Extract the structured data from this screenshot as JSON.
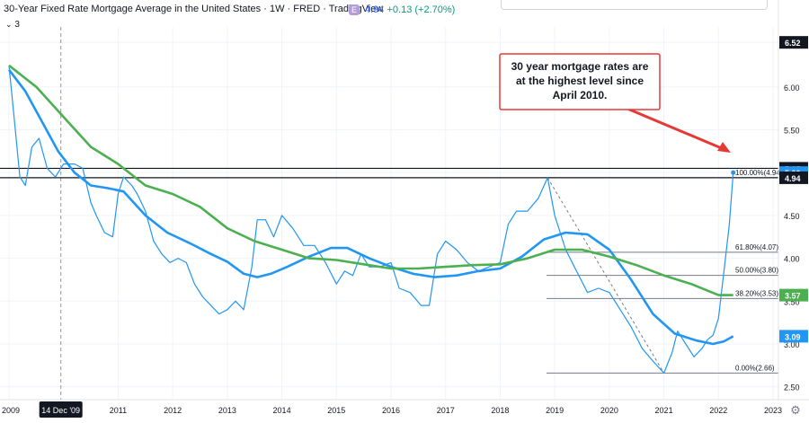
{
  "header": {
    "title": "30-Year Fixed Rate Mortgage Average in the United States · 1W · FRED · TradingView",
    "badge": "E",
    "last": "4.94",
    "change": "+0.13 (+2.70%)",
    "layers": "3"
  },
  "annotation": {
    "line1": "30 year mortgage rates are",
    "line2": "at the highest level since",
    "line3": "April 2010."
  },
  "chart_data": {
    "type": "line",
    "x_axis": {
      "labels": [
        "2009",
        "14 Dec '09",
        "2011",
        "2012",
        "2013",
        "2014",
        "2015",
        "2016",
        "2017",
        "2018",
        "2019",
        "2020",
        "2021",
        "2022",
        "2023"
      ],
      "highlight": "14 Dec '09"
    },
    "y_axis": {
      "ticks": [
        "2.50",
        "3.00",
        "3.50",
        "4.00",
        "4.50",
        "5.00",
        "5.50",
        "6.00",
        "6.52"
      ],
      "ylim": [
        2.35,
        6.7
      ],
      "side": "right"
    },
    "price_tags": [
      {
        "label": "6.52",
        "value": 6.52,
        "color": "#131722"
      },
      {
        "label": "5.05",
        "value": 5.05,
        "color": "#131722"
      },
      {
        "label": "5.00",
        "value": 5.0,
        "color": "#2196f3"
      },
      {
        "label": "4.94",
        "value": 4.94,
        "color": "#131722"
      },
      {
        "label": "3.57",
        "value": 3.57,
        "color": "#4caf50"
      },
      {
        "label": "3.09",
        "value": 3.09,
        "color": "#2196f3"
      }
    ],
    "horizontal_lines": [
      5.05,
      4.94
    ],
    "fibonacci": [
      {
        "label": "100.00%(4.94)",
        "value": 4.94
      },
      {
        "label": "61.80%(4.07)",
        "value": 4.07
      },
      {
        "label": "50.00%(3.80)",
        "value": 3.8
      },
      {
        "label": "38.20%(3.53)",
        "value": 3.53
      },
      {
        "label": "0.00%(2.66)",
        "value": 2.66
      }
    ],
    "series": [
      {
        "style": "thin",
        "color": "#2196f3",
        "points": [
          [
            2009.0,
            6.25
          ],
          [
            2009.1,
            5.6
          ],
          [
            2009.2,
            4.95
          ],
          [
            2009.3,
            4.85
          ],
          [
            2009.42,
            5.3
          ],
          [
            2009.55,
            5.4
          ],
          [
            2009.7,
            5.05
          ],
          [
            2009.85,
            4.95
          ],
          [
            2010.0,
            5.1
          ],
          [
            2010.2,
            5.1
          ],
          [
            2010.35,
            5.05
          ],
          [
            2010.5,
            4.65
          ],
          [
            2010.6,
            4.5
          ],
          [
            2010.75,
            4.3
          ],
          [
            2010.9,
            4.25
          ],
          [
            2011.0,
            4.75
          ],
          [
            2011.1,
            4.95
          ],
          [
            2011.25,
            4.85
          ],
          [
            2011.35,
            4.75
          ],
          [
            2011.5,
            4.55
          ],
          [
            2011.65,
            4.2
          ],
          [
            2011.8,
            4.05
          ],
          [
            2011.95,
            3.95
          ],
          [
            2012.1,
            4.0
          ],
          [
            2012.25,
            3.95
          ],
          [
            2012.4,
            3.7
          ],
          [
            2012.55,
            3.55
          ],
          [
            2012.7,
            3.45
          ],
          [
            2012.85,
            3.35
          ],
          [
            2013.0,
            3.4
          ],
          [
            2013.15,
            3.5
          ],
          [
            2013.3,
            3.4
          ],
          [
            2013.45,
            3.9
          ],
          [
            2013.55,
            4.45
          ],
          [
            2013.7,
            4.45
          ],
          [
            2013.85,
            4.25
          ],
          [
            2014.0,
            4.5
          ],
          [
            2014.2,
            4.35
          ],
          [
            2014.4,
            4.15
          ],
          [
            2014.6,
            4.15
          ],
          [
            2014.8,
            3.95
          ],
          [
            2015.0,
            3.7
          ],
          [
            2015.15,
            3.85
          ],
          [
            2015.3,
            3.8
          ],
          [
            2015.45,
            4.05
          ],
          [
            2015.6,
            3.9
          ],
          [
            2015.8,
            3.9
          ],
          [
            2016.0,
            3.95
          ],
          [
            2016.15,
            3.65
          ],
          [
            2016.35,
            3.6
          ],
          [
            2016.55,
            3.45
          ],
          [
            2016.7,
            3.45
          ],
          [
            2016.85,
            4.05
          ],
          [
            2017.0,
            4.2
          ],
          [
            2017.2,
            4.1
          ],
          [
            2017.4,
            3.95
          ],
          [
            2017.6,
            3.85
          ],
          [
            2017.8,
            3.9
          ],
          [
            2018.0,
            3.95
          ],
          [
            2018.15,
            4.4
          ],
          [
            2018.3,
            4.55
          ],
          [
            2018.5,
            4.55
          ],
          [
            2018.7,
            4.7
          ],
          [
            2018.87,
            4.94
          ],
          [
            2019.0,
            4.5
          ],
          [
            2019.2,
            4.1
          ],
          [
            2019.4,
            3.85
          ],
          [
            2019.6,
            3.6
          ],
          [
            2019.8,
            3.65
          ],
          [
            2020.0,
            3.6
          ],
          [
            2020.2,
            3.4
          ],
          [
            2020.4,
            3.2
          ],
          [
            2020.6,
            2.95
          ],
          [
            2020.8,
            2.8
          ],
          [
            2021.0,
            2.66
          ],
          [
            2021.15,
            2.9
          ],
          [
            2021.25,
            3.15
          ],
          [
            2021.4,
            3.0
          ],
          [
            2021.55,
            2.85
          ],
          [
            2021.7,
            2.95
          ],
          [
            2021.8,
            3.05
          ],
          [
            2021.9,
            3.1
          ],
          [
            2022.0,
            3.3
          ],
          [
            2022.1,
            3.85
          ],
          [
            2022.2,
            4.4
          ],
          [
            2022.27,
            5.0
          ]
        ]
      },
      {
        "style": "ma-short",
        "color": "#2196f3",
        "points": [
          [
            2009.0,
            6.2
          ],
          [
            2009.3,
            5.95
          ],
          [
            2009.6,
            5.6
          ],
          [
            2009.9,
            5.25
          ],
          [
            2010.2,
            5.0
          ],
          [
            2010.5,
            4.85
          ],
          [
            2010.8,
            4.82
          ],
          [
            2011.1,
            4.78
          ],
          [
            2011.5,
            4.5
          ],
          [
            2011.9,
            4.3
          ],
          [
            2012.3,
            4.18
          ],
          [
            2012.7,
            4.05
          ],
          [
            2013.0,
            3.96
          ],
          [
            2013.3,
            3.82
          ],
          [
            2013.55,
            3.78
          ],
          [
            2013.8,
            3.82
          ],
          [
            2014.1,
            3.9
          ],
          [
            2014.5,
            4.02
          ],
          [
            2014.9,
            4.12
          ],
          [
            2015.2,
            4.12
          ],
          [
            2015.6,
            4.0
          ],
          [
            2016.0,
            3.9
          ],
          [
            2016.4,
            3.82
          ],
          [
            2016.8,
            3.78
          ],
          [
            2017.2,
            3.8
          ],
          [
            2017.6,
            3.85
          ],
          [
            2018.0,
            3.88
          ],
          [
            2018.4,
            4.02
          ],
          [
            2018.8,
            4.22
          ],
          [
            2019.2,
            4.3
          ],
          [
            2019.6,
            4.28
          ],
          [
            2020.0,
            4.1
          ],
          [
            2020.4,
            3.75
          ],
          [
            2020.8,
            3.35
          ],
          [
            2021.2,
            3.12
          ],
          [
            2021.6,
            3.04
          ],
          [
            2021.9,
            3.0
          ],
          [
            2022.1,
            3.03
          ],
          [
            2022.27,
            3.09
          ]
        ]
      },
      {
        "style": "ma-long",
        "color": "#4caf50",
        "points": [
          [
            2009.0,
            6.25
          ],
          [
            2009.5,
            6.0
          ],
          [
            2010.0,
            5.65
          ],
          [
            2010.5,
            5.3
          ],
          [
            2011.0,
            5.1
          ],
          [
            2011.5,
            4.85
          ],
          [
            2012.0,
            4.75
          ],
          [
            2012.5,
            4.6
          ],
          [
            2013.0,
            4.35
          ],
          [
            2013.5,
            4.2
          ],
          [
            2014.0,
            4.1
          ],
          [
            2014.5,
            4.0
          ],
          [
            2015.0,
            3.98
          ],
          [
            2015.5,
            3.93
          ],
          [
            2016.0,
            3.88
          ],
          [
            2016.5,
            3.88
          ],
          [
            2017.0,
            3.9
          ],
          [
            2017.5,
            3.92
          ],
          [
            2018.0,
            3.93
          ],
          [
            2018.5,
            4.0
          ],
          [
            2019.0,
            4.1
          ],
          [
            2019.5,
            4.1
          ],
          [
            2020.0,
            4.02
          ],
          [
            2020.5,
            3.92
          ],
          [
            2021.0,
            3.8
          ],
          [
            2021.5,
            3.7
          ],
          [
            2022.0,
            3.57
          ],
          [
            2022.27,
            3.57
          ]
        ]
      }
    ]
  }
}
